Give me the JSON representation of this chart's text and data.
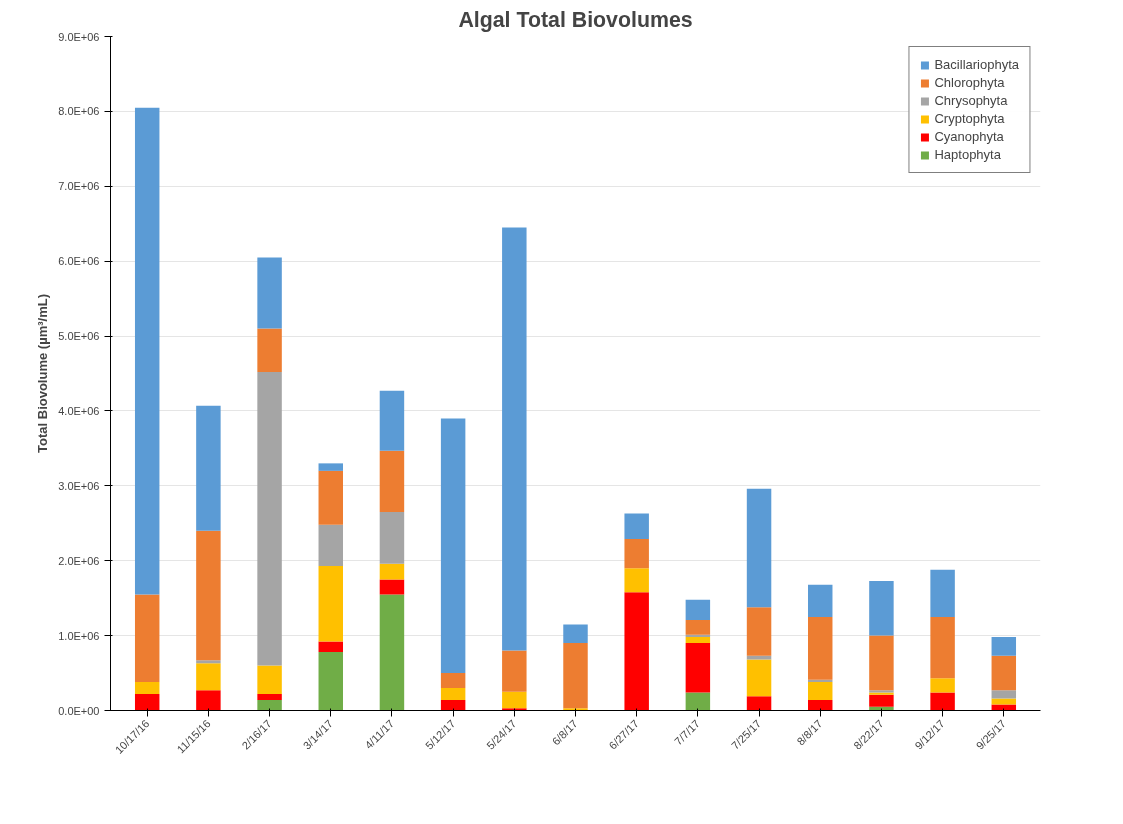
{
  "chart_data": {
    "type": "bar",
    "title": "Algal Total Biovolumes",
    "ylabel": "Total Biovolume (µm³/mL)",
    "stacked": true,
    "grid": "y",
    "legend": "top right",
    "categories": [
      "10/17/16",
      "11/15/16",
      "2/16/17",
      "3/14/17",
      "4/11/17",
      "5/12/17",
      "5/24/17",
      "6/8/17",
      "6/27/17",
      "7/7/17",
      "7/25/17",
      "8/8/17",
      "8/22/17",
      "9/12/17",
      "9/25/17"
    ],
    "ylim": [
      0,
      9000000
    ],
    "yticks": [
      {
        "value": 0,
        "label": "0.0E+00"
      },
      {
        "value": 1000000,
        "label": "1.0E+06"
      },
      {
        "value": 2000000,
        "label": "2.0E+06"
      },
      {
        "value": 3000000,
        "label": "3.0E+06"
      },
      {
        "value": 4000000,
        "label": "4.0E+06"
      },
      {
        "value": 5000000,
        "label": "5.0E+06"
      },
      {
        "value": 6000000,
        "label": "6.0E+06"
      },
      {
        "value": 7000000,
        "label": "7.0E+06"
      },
      {
        "value": 8000000,
        "label": "8.0E+06"
      },
      {
        "value": 9000000,
        "label": "9.0E+06"
      }
    ],
    "series": [
      {
        "name": "Haptophyta",
        "color": "#70ad47",
        "values": [
          0,
          0,
          140000,
          780000,
          1550000,
          0,
          0,
          0,
          0,
          240000,
          0,
          0,
          50000,
          0,
          0
        ]
      },
      {
        "name": "Cyanophyta",
        "color": "#ff0000",
        "values": [
          220000,
          270000,
          80000,
          140000,
          200000,
          140000,
          30000,
          0,
          1580000,
          660000,
          190000,
          140000,
          160000,
          240000,
          80000
        ]
      },
      {
        "name": "Cryptophyta",
        "color": "#ffc000",
        "values": [
          160000,
          360000,
          380000,
          1010000,
          210000,
          160000,
          220000,
          30000,
          320000,
          80000,
          490000,
          240000,
          30000,
          190000,
          80000
        ]
      },
      {
        "name": "Chrysophyta",
        "color": "#a5a5a5",
        "values": [
          0,
          40000,
          3920000,
          550000,
          690000,
          0,
          0,
          0,
          0,
          30000,
          50000,
          30000,
          30000,
          0,
          110000
        ]
      },
      {
        "name": "Chlorophyta",
        "color": "#ed7d31",
        "values": [
          1170000,
          1730000,
          580000,
          720000,
          820000,
          200000,
          550000,
          870000,
          390000,
          200000,
          650000,
          840000,
          730000,
          820000,
          460000
        ]
      },
      {
        "name": "Bacillariophyta",
        "color": "#5b9bd5",
        "values": [
          6500000,
          1670000,
          950000,
          100000,
          800000,
          3400000,
          5650000,
          250000,
          340000,
          270000,
          1580000,
          430000,
          730000,
          630000,
          250000
        ]
      }
    ]
  }
}
